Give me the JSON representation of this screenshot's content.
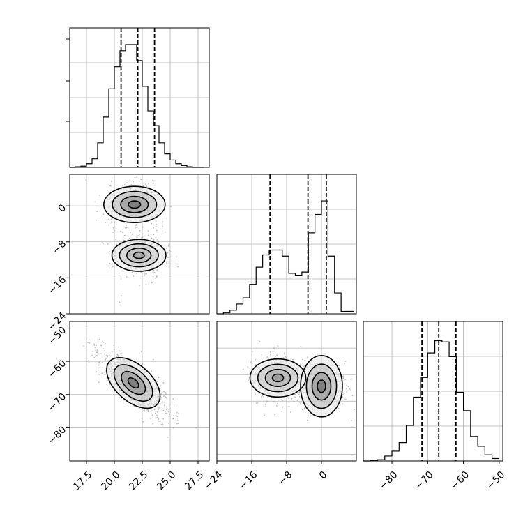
{
  "chart_data": [
    {
      "type": "histogram",
      "position": "row-1-col-1",
      "parameter_index": 0,
      "xlim": [
        16,
        28.5
      ],
      "ylim": [
        0,
        1.0
      ],
      "grid": true,
      "bin_edges": [
        16.0,
        16.5,
        17.0,
        17.5,
        18.0,
        18.5,
        19.0,
        19.5,
        20.0,
        20.5,
        21.0,
        21.5,
        22.0,
        22.5,
        23.0,
        23.5,
        24.0,
        24.5,
        25.0,
        25.5,
        26.0,
        26.5,
        27.0,
        27.5,
        28.0
      ],
      "counts": [
        0.0,
        0.005,
        0.01,
        0.03,
        0.07,
        0.2,
        0.41,
        0.64,
        0.82,
        0.95,
        1.0,
        1.0,
        0.87,
        0.66,
        0.46,
        0.34,
        0.2,
        0.11,
        0.06,
        0.03,
        0.015,
        0.005,
        0.0,
        0.0
      ],
      "quantiles": [
        20.6,
        22.1,
        23.6
      ]
    },
    {
      "type": "scatter-contour",
      "position": "row-2-col-1",
      "xlim": [
        16,
        28.5
      ],
      "ylim": [
        -24,
        7
      ],
      "grid": true,
      "ytick_labels": [
        "0",
        "−8",
        "−16",
        "−24"
      ],
      "ytick_values": [
        0,
        -8,
        -16,
        -24
      ],
      "density_peaks": [
        {
          "x": 21.8,
          "y": 0.3,
          "weight": 1.0
        },
        {
          "x": 22.2,
          "y": -11,
          "weight": 0.6
        }
      ]
    },
    {
      "type": "histogram",
      "position": "row-2-col-2",
      "parameter_index": 1,
      "xlim": [
        -24,
        8
      ],
      "ylim": [
        0,
        1.0
      ],
      "grid": true,
      "bin_edges": [
        -24,
        -22.5,
        -21,
        -19.5,
        -18,
        -16.5,
        -15,
        -13.5,
        -12,
        -10.5,
        -9,
        -7.5,
        -6,
        -4.5,
        -3,
        -1.5,
        0,
        1.5,
        3,
        4.5,
        6,
        7.5
      ],
      "counts": [
        0.0,
        0.01,
        0.03,
        0.08,
        0.13,
        0.24,
        0.38,
        0.48,
        0.52,
        0.52,
        0.47,
        0.33,
        0.31,
        0.34,
        0.66,
        0.81,
        0.92,
        0.47,
        0.17,
        0.02,
        0.02
      ],
      "quantiles": [
        -11.8,
        -3.1,
        1.1
      ]
    },
    {
      "type": "scatter-contour",
      "position": "row-3-col-1",
      "xlim": [
        16,
        28.5
      ],
      "ylim": [
        -90,
        -48
      ],
      "grid": true,
      "xtick_labels": [
        "17.5",
        "20.0",
        "22.5",
        "25.0",
        "27.5"
      ],
      "xtick_values": [
        17.5,
        20.0,
        22.5,
        25.0,
        27.5
      ],
      "ytick_labels": [
        "−50",
        "−60",
        "−70",
        "−80"
      ],
      "ytick_values": [
        -50,
        -60,
        -70,
        -80
      ],
      "density_peaks": [
        {
          "x": 21.7,
          "y": -66.5,
          "weight": 1.0
        }
      ]
    },
    {
      "type": "scatter-contour",
      "position": "row-3-col-2",
      "xlim": [
        -24,
        8
      ],
      "ylim": [
        -90,
        -48
      ],
      "grid": true,
      "xtick_labels": [
        "−24",
        "−16",
        "−8",
        "0"
      ],
      "xtick_values": [
        -24,
        -16,
        -8,
        0
      ],
      "density_peaks": [
        {
          "x": -10,
          "y": -65,
          "weight": 0.7
        },
        {
          "x": 0,
          "y": -67.5,
          "weight": 1.0
        }
      ]
    },
    {
      "type": "histogram",
      "position": "row-3-col-3",
      "parameter_index": 2,
      "xlim": [
        -88,
        -49
      ],
      "ylim": [
        0,
        1.0
      ],
      "grid": true,
      "xtick_labels": [
        "−80",
        "−70",
        "−60",
        "−50"
      ],
      "xtick_values": [
        -80,
        -70,
        -60,
        -50
      ],
      "bin_edges": [
        -88,
        -86,
        -84,
        -82,
        -80,
        -78,
        -76,
        -74,
        -72,
        -70,
        -68,
        -66,
        -64,
        -62,
        -60,
        -58,
        -56,
        -54,
        -52,
        -50
      ],
      "counts": [
        0.0,
        0.005,
        0.01,
        0.04,
        0.08,
        0.15,
        0.29,
        0.52,
        0.68,
        0.88,
        0.98,
        0.97,
        0.85,
        0.56,
        0.41,
        0.2,
        0.12,
        0.05,
        0.02
      ],
      "quantiles": [
        -71.6,
        -66.9,
        -62.1
      ]
    }
  ]
}
